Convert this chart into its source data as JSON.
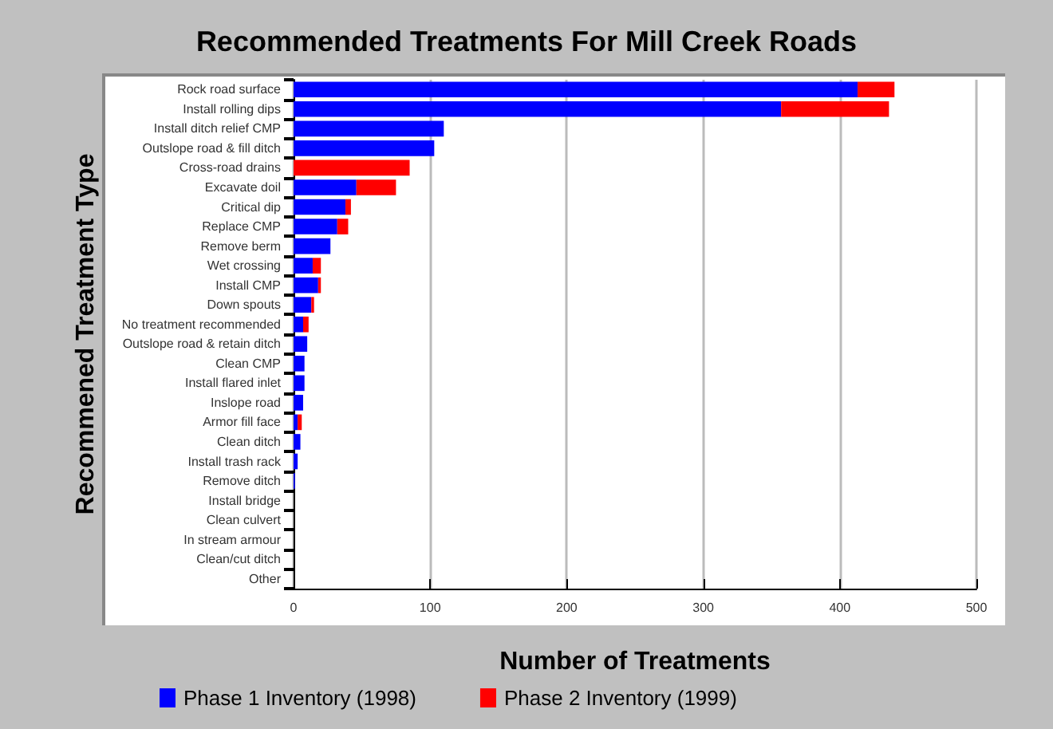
{
  "chart_data": {
    "type": "bar",
    "orientation": "horizontal",
    "stacked": true,
    "title": "Recommended Treatments For Mill Creek Roads",
    "xlabel": "Number of Treatments",
    "ylabel": "Recommened Treatment Type",
    "categories": [
      "Rock road surface",
      "Install rolling dips",
      "Install ditch relief CMP",
      "Outslope road & fill ditch",
      "Cross-road drains",
      "Excavate doil",
      "Critical dip",
      "Replace CMP",
      "Remove berm",
      "Wet crossing",
      "Install CMP",
      "Down spouts",
      "No treatment recommended",
      "Outslope road & retain ditch",
      "Clean CMP",
      "Install flared inlet",
      "Inslope road",
      "Armor fill face",
      "Clean ditch",
      "Install trash rack",
      "Remove ditch",
      "Install bridge",
      "Clean culvert",
      "In stream armour",
      "Clean/cut ditch",
      "Other"
    ],
    "series": [
      {
        "name": "Phase 1 Inventory (1998)",
        "color": "#0000ff",
        "values": [
          413,
          357,
          110,
          103,
          0,
          46,
          38,
          32,
          27,
          14,
          18,
          13,
          7,
          10,
          8,
          8,
          7,
          3,
          5,
          3,
          1,
          0,
          0,
          0,
          0,
          0
        ]
      },
      {
        "name": "Phase 2 Inventory (1999)",
        "color": "#ff0000",
        "values": [
          27,
          79,
          0,
          0,
          85,
          29,
          4,
          8,
          0,
          6,
          2,
          2,
          4,
          0,
          0,
          0,
          0,
          3,
          0,
          0,
          0,
          0,
          0,
          0,
          0,
          0
        ]
      }
    ],
    "xlim": [
      0,
      500
    ],
    "xticks": [
      0,
      100,
      200,
      300,
      400,
      500
    ],
    "grid": "x",
    "legend": "bottom"
  }
}
